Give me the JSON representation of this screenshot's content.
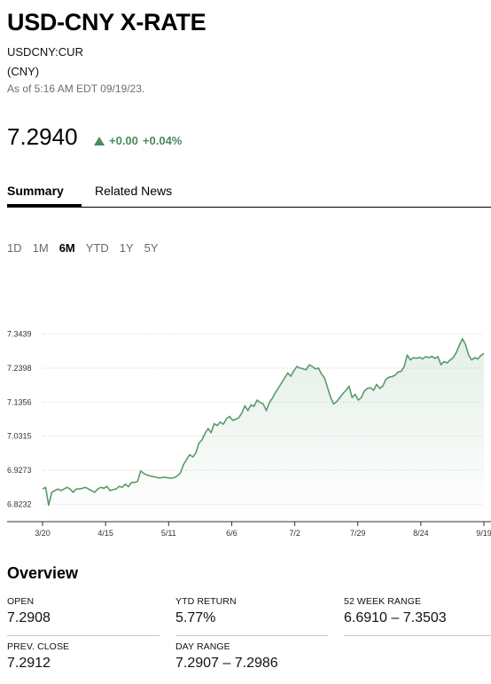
{
  "header": {
    "title": "USD-CNY X-RATE",
    "ticker": "USDCNY:CUR",
    "currency": "(CNY)",
    "as_of": "As of 5:16 AM EDT 09/19/23."
  },
  "quote": {
    "price": "7.2940",
    "change_abs": "+0.00",
    "change_pct": "+0.04%",
    "direction": "up",
    "up_color": "#4a8c5c"
  },
  "tabs": [
    {
      "label": "Summary",
      "active": true
    },
    {
      "label": "Related News",
      "active": false
    }
  ],
  "ranges": {
    "items": [
      "1D",
      "1M",
      "6M",
      "YTD",
      "1Y",
      "5Y"
    ],
    "selected": "6M"
  },
  "chart_data": {
    "type": "area",
    "title": "",
    "xlabel": "",
    "ylabel": "",
    "x_ticks": [
      "3/20",
      "4/15",
      "5/11",
      "6/6",
      "7/2",
      "7/29",
      "8/24",
      "9/19"
    ],
    "y_ticks": [
      "6.8232",
      "6.9273",
      "7.0315",
      "7.1356",
      "7.2398",
      "7.3439"
    ],
    "ylim": [
      6.77,
      7.4
    ],
    "grid": "horizontal dotted",
    "line_color": "#5a9a6a",
    "series": [
      {
        "values": [
          6.87,
          6.875,
          6.82,
          6.86,
          6.865,
          6.87,
          6.865,
          6.87,
          6.875,
          6.87,
          6.86,
          6.87,
          6.87,
          6.872,
          6.875,
          6.87,
          6.865,
          6.86,
          6.87,
          6.875,
          6.872,
          6.878,
          6.865,
          6.868,
          6.87,
          6.878,
          6.875,
          6.885,
          6.877,
          6.89,
          6.89,
          6.893,
          6.925,
          6.918,
          6.913,
          6.91,
          6.908,
          6.906,
          6.904,
          6.905,
          6.906,
          6.904,
          6.903,
          6.905,
          6.91,
          6.92,
          6.945,
          6.96,
          6.975,
          6.968,
          6.98,
          7.01,
          7.02,
          7.04,
          7.055,
          7.042,
          7.07,
          7.064,
          7.075,
          7.068,
          7.085,
          7.092,
          7.08,
          7.083,
          7.088,
          7.102,
          7.125,
          7.11,
          7.128,
          7.123,
          7.142,
          7.135,
          7.13,
          7.11,
          7.135,
          7.148,
          7.165,
          7.18,
          7.195,
          7.21,
          7.225,
          7.215,
          7.232,
          7.245,
          7.24,
          7.238,
          7.235,
          7.25,
          7.245,
          7.238,
          7.24,
          7.222,
          7.21,
          7.18,
          7.15,
          7.13,
          7.138,
          7.15,
          7.162,
          7.172,
          7.185,
          7.15,
          7.16,
          7.142,
          7.15,
          7.17,
          7.178,
          7.18,
          7.172,
          7.19,
          7.178,
          7.185,
          7.205,
          7.212,
          7.214,
          7.218,
          7.228,
          7.23,
          7.245,
          7.28,
          7.265,
          7.272,
          7.27,
          7.273,
          7.268,
          7.275,
          7.272,
          7.276,
          7.27,
          7.275,
          7.25,
          7.26,
          7.256,
          7.265,
          7.272,
          7.288,
          7.31,
          7.33,
          7.312,
          7.28,
          7.265,
          7.272,
          7.268,
          7.278,
          7.285
        ]
      }
    ]
  },
  "overview": {
    "title": "Overview",
    "stats": [
      {
        "label": "OPEN",
        "value": "7.2908"
      },
      {
        "label": "YTD RETURN",
        "value": "5.77%"
      },
      {
        "label": "52 WEEK RANGE",
        "value": "6.6910 – 7.3503"
      },
      {
        "label": "PREV. CLOSE",
        "value": "7.2912"
      },
      {
        "label": "DAY RANGE",
        "value": "7.2907 – 7.2986"
      }
    ]
  }
}
